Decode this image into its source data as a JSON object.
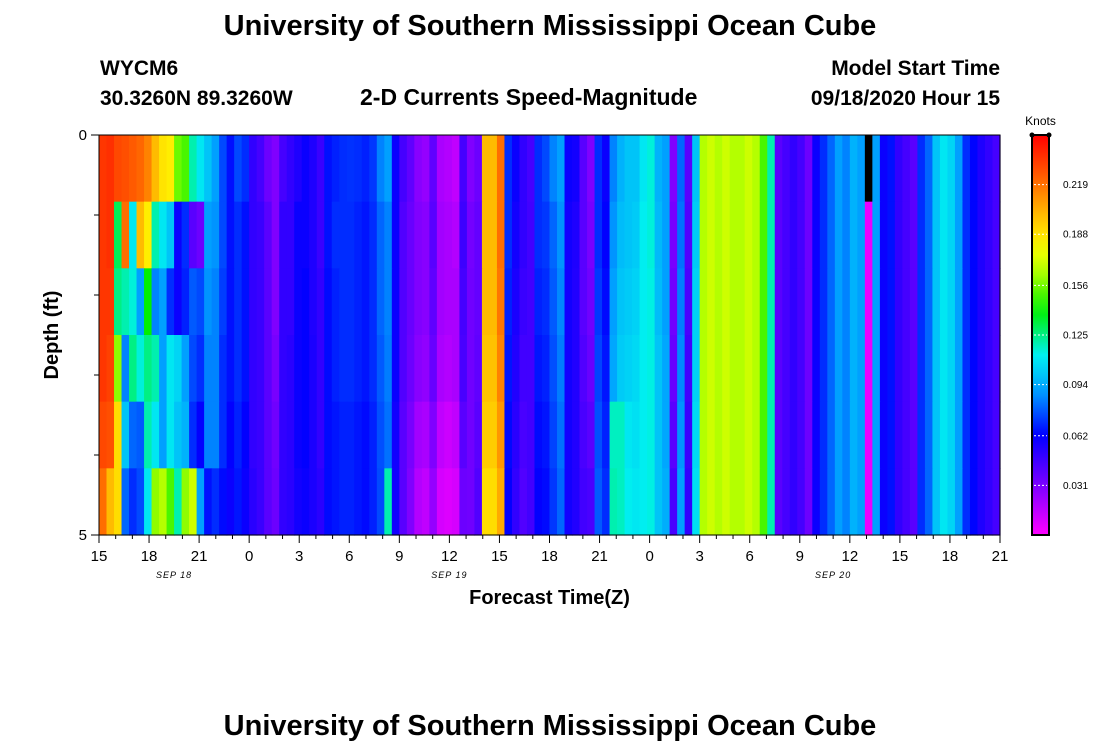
{
  "header": {
    "title": "University of Southern Mississippi Ocean Cube",
    "station": "WYCM6",
    "coords": "30.3260N 89.3260W",
    "subtitle": "2-D Currents Speed-Magnitude",
    "model_label": "Model Start Time",
    "model_time": "09/18/2020 Hour 15"
  },
  "footer": {
    "title": "University of Southern Mississippi Ocean Cube"
  },
  "chart_data": {
    "type": "heatmap",
    "xlabel": "Forecast Time(Z)",
    "ylabel": "Depth (ft)",
    "x_start_hour": 15,
    "x_end_hour": 69,
    "y_range": [
      0,
      5
    ],
    "y_ticks": [
      "0",
      "5"
    ],
    "x_ticks": [
      "15",
      "18",
      "21",
      "0",
      "3",
      "6",
      "9",
      "12",
      "15",
      "18",
      "21",
      "0",
      "3",
      "6",
      "9",
      "12",
      "15",
      "18",
      "21"
    ],
    "date_labels": [
      {
        "text": "SEP 18",
        "hour": 19.5
      },
      {
        "text": "SEP 19",
        "hour": 36
      },
      {
        "text": "SEP 20",
        "hour": 59
      }
    ],
    "colorbar": {
      "unit": "Knots",
      "range": [
        0.0,
        0.25
      ],
      "ticks": [
        "0.219",
        "0.188",
        "0.156",
        "0.125",
        "0.094",
        "0.062",
        "0.031"
      ]
    },
    "depth_layers": 5,
    "columns_per_hour": 2,
    "speed_knots": [
      [
        0.235,
        0.237,
        0.23,
        0.228,
        0.225,
        0.222,
        0.215,
        0.2,
        0.188,
        0.185,
        0.155,
        0.15,
        0.12,
        0.11,
        0.1,
        0.09,
        0.075,
        0.065,
        0.075,
        0.07,
        0.05,
        0.045,
        0.035,
        0.03,
        0.045,
        0.05,
        0.055,
        0.06,
        0.055,
        0.048,
        0.065,
        0.068,
        0.07,
        0.071,
        0.07,
        0.068,
        0.072,
        0.085,
        0.09,
        0.06,
        0.045,
        0.038,
        0.028,
        0.025,
        0.038,
        0.02,
        0.018,
        0.015,
        0.045,
        0.03,
        0.035,
        0.2,
        0.2,
        0.22,
        0.07,
        0.06,
        0.05,
        0.045,
        0.07,
        0.075,
        0.085,
        0.09,
        0.06,
        0.058,
        0.04,
        0.03,
        0.07,
        0.06,
        0.085,
        0.095,
        0.1,
        0.1,
        0.11,
        0.115,
        0.095,
        0.09,
        0.03,
        0.08,
        0.04,
        0.1,
        0.165,
        0.17,
        0.165,
        0.17,
        0.165,
        0.165,
        0.17,
        0.165,
        0.15,
        0.12,
        0.04,
        0.045,
        0.05,
        0.045,
        0.035,
        0.06,
        0.07,
        0.08,
        0.09,
        0.085,
        0.095,
        0.09,
        0.25,
        0.09,
        0.06,
        0.065,
        0.05,
        0.045,
        0.04,
        0.07,
        0.08,
        0.1,
        0.11,
        0.105,
        0.09,
        0.07,
        0.063,
        0.055,
        0.05,
        0.045
      ],
      [
        0.235,
        0.237,
        0.13,
        0.22,
        0.11,
        0.2,
        0.185,
        0.12,
        0.11,
        0.1,
        0.06,
        0.07,
        0.04,
        0.035,
        0.09,
        0.088,
        0.075,
        0.065,
        0.07,
        0.065,
        0.05,
        0.048,
        0.04,
        0.03,
        0.05,
        0.05,
        0.06,
        0.06,
        0.055,
        0.048,
        0.065,
        0.07,
        0.07,
        0.07,
        0.068,
        0.066,
        0.07,
        0.08,
        0.085,
        0.06,
        0.042,
        0.036,
        0.03,
        0.028,
        0.04,
        0.022,
        0.02,
        0.018,
        0.047,
        0.033,
        0.037,
        0.2,
        0.2,
        0.22,
        0.07,
        0.058,
        0.05,
        0.046,
        0.07,
        0.072,
        0.08,
        0.088,
        0.058,
        0.055,
        0.04,
        0.032,
        0.07,
        0.062,
        0.088,
        0.098,
        0.1,
        0.102,
        0.112,
        0.115,
        0.097,
        0.09,
        0.032,
        0.082,
        0.042,
        0.102,
        0.165,
        0.17,
        0.165,
        0.17,
        0.165,
        0.165,
        0.17,
        0.165,
        0.15,
        0.12,
        0.04,
        0.045,
        0.05,
        0.045,
        0.035,
        0.06,
        0.07,
        0.08,
        0.09,
        0.085,
        0.095,
        0.09,
        0.005,
        0.09,
        0.06,
        0.065,
        0.05,
        0.045,
        0.04,
        0.07,
        0.08,
        0.1,
        0.11,
        0.105,
        0.09,
        0.07,
        0.063,
        0.055,
        0.05,
        0.045
      ],
      [
        0.235,
        0.235,
        0.125,
        0.12,
        0.115,
        0.09,
        0.14,
        0.085,
        0.09,
        0.07,
        0.06,
        0.068,
        0.078,
        0.075,
        0.088,
        0.085,
        0.073,
        0.065,
        0.07,
        0.065,
        0.05,
        0.048,
        0.04,
        0.03,
        0.05,
        0.05,
        0.06,
        0.062,
        0.055,
        0.05,
        0.064,
        0.068,
        0.07,
        0.07,
        0.068,
        0.066,
        0.07,
        0.08,
        0.085,
        0.06,
        0.042,
        0.036,
        0.03,
        0.028,
        0.038,
        0.022,
        0.02,
        0.02,
        0.045,
        0.034,
        0.037,
        0.2,
        0.2,
        0.218,
        0.068,
        0.056,
        0.048,
        0.046,
        0.068,
        0.07,
        0.078,
        0.086,
        0.058,
        0.054,
        0.04,
        0.034,
        0.072,
        0.064,
        0.09,
        0.1,
        0.102,
        0.104,
        0.112,
        0.114,
        0.098,
        0.09,
        0.034,
        0.084,
        0.044,
        0.104,
        0.165,
        0.17,
        0.165,
        0.17,
        0.165,
        0.165,
        0.17,
        0.165,
        0.15,
        0.12,
        0.04,
        0.045,
        0.05,
        0.045,
        0.035,
        0.06,
        0.07,
        0.08,
        0.09,
        0.085,
        0.095,
        0.09,
        0.005,
        0.09,
        0.06,
        0.065,
        0.05,
        0.045,
        0.04,
        0.07,
        0.08,
        0.1,
        0.11,
        0.105,
        0.09,
        0.07,
        0.063,
        0.055,
        0.05,
        0.045
      ],
      [
        0.235,
        0.232,
        0.16,
        0.085,
        0.125,
        0.115,
        0.125,
        0.12,
        0.09,
        0.11,
        0.105,
        0.09,
        0.075,
        0.07,
        0.085,
        0.085,
        0.07,
        0.065,
        0.07,
        0.065,
        0.05,
        0.048,
        0.04,
        0.032,
        0.05,
        0.052,
        0.06,
        0.062,
        0.056,
        0.05,
        0.064,
        0.068,
        0.07,
        0.07,
        0.068,
        0.066,
        0.07,
        0.078,
        0.084,
        0.06,
        0.042,
        0.035,
        0.028,
        0.026,
        0.036,
        0.02,
        0.018,
        0.02,
        0.044,
        0.034,
        0.038,
        0.198,
        0.198,
        0.215,
        0.066,
        0.054,
        0.046,
        0.046,
        0.066,
        0.068,
        0.076,
        0.084,
        0.058,
        0.054,
        0.042,
        0.036,
        0.074,
        0.066,
        0.092,
        0.102,
        0.104,
        0.106,
        0.112,
        0.114,
        0.1,
        0.092,
        0.036,
        0.086,
        0.046,
        0.104,
        0.165,
        0.17,
        0.165,
        0.17,
        0.165,
        0.165,
        0.17,
        0.165,
        0.15,
        0.12,
        0.04,
        0.045,
        0.05,
        0.045,
        0.035,
        0.06,
        0.07,
        0.08,
        0.09,
        0.085,
        0.095,
        0.09,
        0.005,
        0.09,
        0.06,
        0.065,
        0.05,
        0.045,
        0.04,
        0.07,
        0.08,
        0.1,
        0.11,
        0.105,
        0.09,
        0.07,
        0.063,
        0.055,
        0.05,
        0.045
      ],
      [
        0.23,
        0.228,
        0.19,
        0.1,
        0.08,
        0.078,
        0.12,
        0.11,
        0.09,
        0.11,
        0.1,
        0.095,
        0.07,
        0.062,
        0.085,
        0.085,
        0.07,
        0.062,
        0.068,
        0.062,
        0.05,
        0.048,
        0.04,
        0.034,
        0.05,
        0.052,
        0.06,
        0.062,
        0.056,
        0.05,
        0.064,
        0.066,
        0.068,
        0.068,
        0.066,
        0.064,
        0.068,
        0.076,
        0.082,
        0.058,
        0.04,
        0.032,
        0.022,
        0.02,
        0.03,
        0.015,
        0.012,
        0.015,
        0.04,
        0.034,
        0.04,
        0.195,
        0.195,
        0.21,
        0.064,
        0.052,
        0.044,
        0.046,
        0.064,
        0.066,
        0.074,
        0.082,
        0.058,
        0.054,
        0.044,
        0.04,
        0.076,
        0.068,
        0.118,
        0.118,
        0.11,
        0.108,
        0.112,
        0.114,
        0.1,
        0.092,
        0.04,
        0.088,
        0.048,
        0.106,
        0.165,
        0.17,
        0.165,
        0.17,
        0.165,
        0.165,
        0.17,
        0.165,
        0.15,
        0.12,
        0.04,
        0.045,
        0.05,
        0.045,
        0.035,
        0.06,
        0.07,
        0.08,
        0.09,
        0.085,
        0.095,
        0.09,
        0.005,
        0.09,
        0.06,
        0.065,
        0.05,
        0.045,
        0.04,
        0.07,
        0.08,
        0.1,
        0.11,
        0.105,
        0.09,
        0.07,
        0.063,
        0.055,
        0.05,
        0.045
      ],
      [
        0.22,
        0.2,
        0.19,
        0.08,
        0.07,
        0.075,
        0.11,
        0.16,
        0.165,
        0.15,
        0.12,
        0.16,
        0.17,
        0.09,
        0.065,
        0.07,
        0.064,
        0.06,
        0.066,
        0.06,
        0.052,
        0.048,
        0.04,
        0.035,
        0.05,
        0.052,
        0.058,
        0.06,
        0.056,
        0.052,
        0.064,
        0.066,
        0.068,
        0.068,
        0.066,
        0.064,
        0.068,
        0.075,
        0.12,
        0.058,
        0.04,
        0.03,
        0.018,
        0.015,
        0.025,
        0.01,
        0.008,
        0.01,
        0.035,
        0.034,
        0.042,
        0.19,
        0.19,
        0.205,
        0.062,
        0.05,
        0.042,
        0.046,
        0.062,
        0.064,
        0.072,
        0.08,
        0.058,
        0.054,
        0.046,
        0.044,
        0.078,
        0.07,
        0.12,
        0.118,
        0.112,
        0.11,
        0.112,
        0.114,
        0.1,
        0.094,
        0.044,
        0.09,
        0.05,
        0.108,
        0.165,
        0.17,
        0.165,
        0.17,
        0.165,
        0.165,
        0.17,
        0.165,
        0.15,
        0.12,
        0.04,
        0.045,
        0.05,
        0.045,
        0.035,
        0.06,
        0.07,
        0.08,
        0.09,
        0.085,
        0.095,
        0.09,
        0.005,
        0.09,
        0.06,
        0.065,
        0.05,
        0.045,
        0.04,
        0.07,
        0.08,
        0.1,
        0.11,
        0.105,
        0.09,
        0.07,
        0.063,
        0.055,
        0.05,
        0.045
      ]
    ]
  }
}
